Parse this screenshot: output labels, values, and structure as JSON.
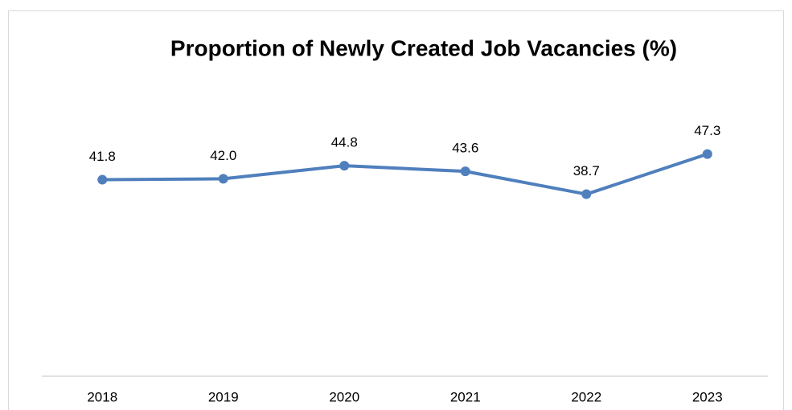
{
  "chart_data": {
    "type": "line",
    "title": "Proportion of Newly Created Job Vacancies (%)",
    "categories": [
      "2018",
      "2019",
      "2020",
      "2021",
      "2022",
      "2023"
    ],
    "values": [
      41.8,
      42.0,
      44.8,
      43.6,
      38.7,
      47.3
    ],
    "value_labels": [
      "41.8",
      "42.0",
      "44.8",
      "43.6",
      "38.7",
      "47.3"
    ],
    "color": "#4f7fbc",
    "ylim": [
      0,
      80
    ]
  }
}
